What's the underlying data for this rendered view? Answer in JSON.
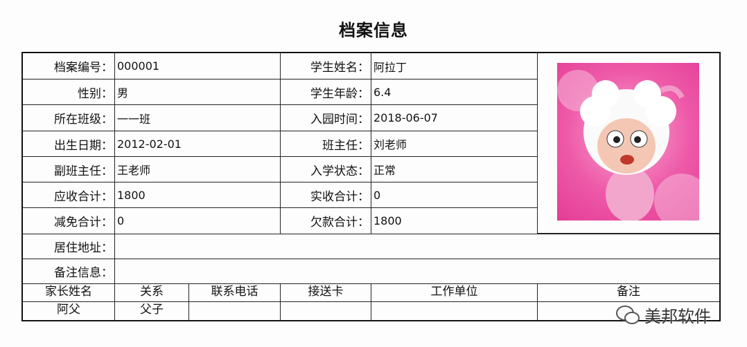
{
  "title": "档案信息",
  "fields": {
    "file_no": {
      "label": "档案编号：",
      "value": "000001"
    },
    "student_name": {
      "label": "学生姓名：",
      "value": "阿拉丁"
    },
    "gender": {
      "label": "性别：",
      "value": "男"
    },
    "age": {
      "label": "学生年龄：",
      "value": "6.4"
    },
    "class": {
      "label": "所在班级：",
      "value": "一一班"
    },
    "enroll_date": {
      "label": "入园时间：",
      "value": "2018-06-07"
    },
    "birth_date": {
      "label": "出生日期：",
      "value": "2012-02-01"
    },
    "head_teacher": {
      "label": "班主任：",
      "value": "刘老师"
    },
    "assistant_teacher": {
      "label": "副班主任：",
      "value": "王老师"
    },
    "status": {
      "label": "入学状态：",
      "value": "正常"
    },
    "receivable": {
      "label": "应收合计：",
      "value": "1800"
    },
    "received": {
      "label": "实收合计：",
      "value": "0"
    },
    "discount": {
      "label": "减免合计：",
      "value": "0"
    },
    "arrears": {
      "label": "欠款合计：",
      "value": "1800"
    },
    "address": {
      "label": "居住地址：",
      "value": ""
    },
    "remarks": {
      "label": "备注信息：",
      "value": ""
    }
  },
  "parents": {
    "headers": [
      "家长姓名",
      "关系",
      "联系电话",
      "接送卡",
      "工作单位",
      "备注"
    ],
    "rows": [
      [
        "阿父",
        "父子",
        "",
        "",
        "",
        ""
      ]
    ]
  },
  "photo": {
    "icon": "student-photo-cartoon-sheep"
  },
  "watermark": "美邦软件"
}
